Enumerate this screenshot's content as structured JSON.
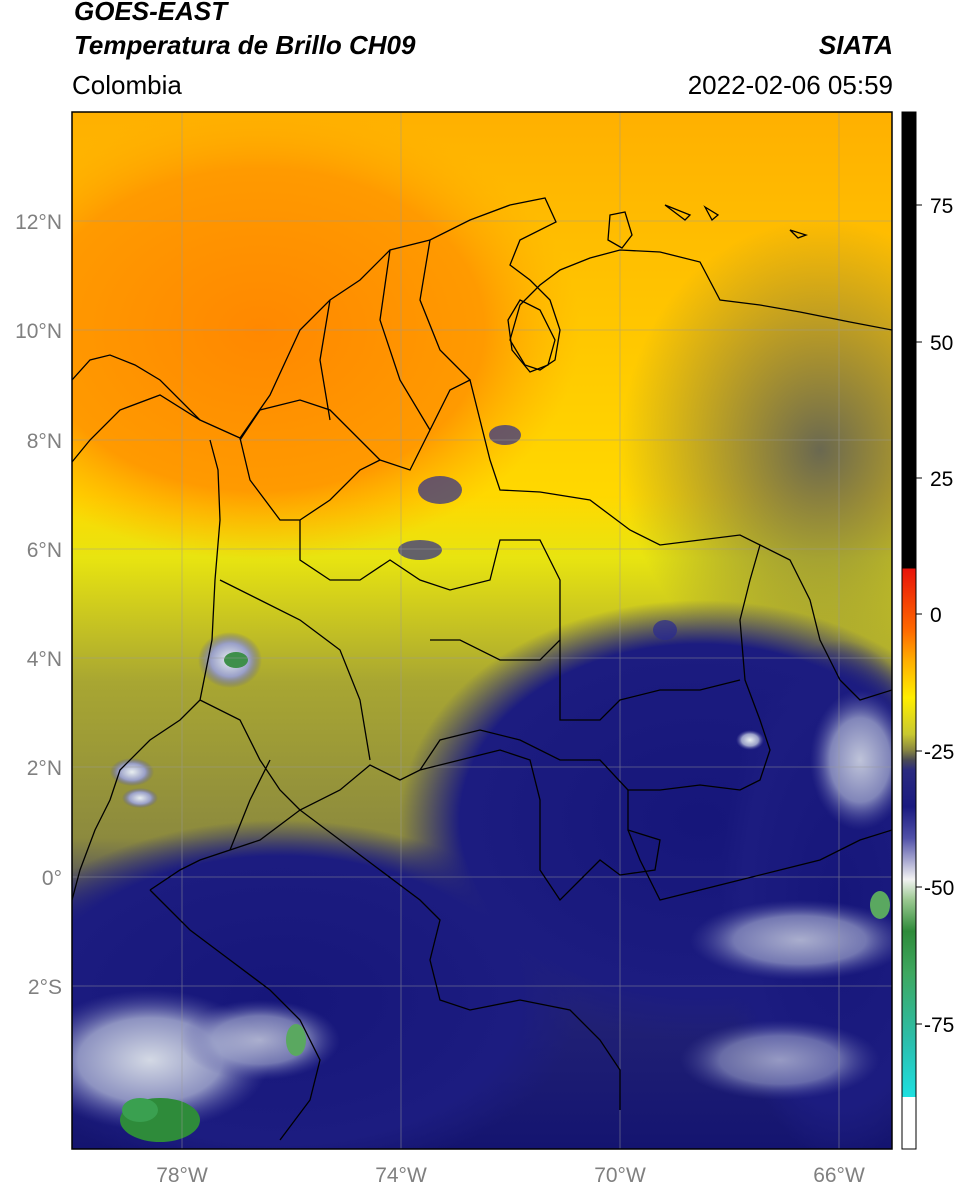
{
  "header": {
    "satellite": "GOES-EAST",
    "product": "Temperatura de Brillo CH09",
    "region": "Colombia",
    "source": "SIATA",
    "datetime": "2022-02-06 05:59"
  },
  "map": {
    "lat_labels": [
      "12°N",
      "10°N",
      "8°N",
      "6°N",
      "4°N",
      "2°N",
      "0°",
      "2°S"
    ],
    "lon_labels": [
      "78°W",
      "74°W",
      "70°W",
      "66°W"
    ],
    "lon_range": [
      -80,
      -65
    ],
    "lat_range": [
      -5,
      14
    ]
  },
  "colorbar": {
    "labels": [
      "75",
      "50",
      "25",
      "0",
      "-25",
      "-50",
      "-75"
    ],
    "colors": {
      "black": "#000000",
      "red": "#e8120a",
      "orange": "#ff8c00",
      "yellow": "#ffee00",
      "olive": "#b8b830",
      "gray": "#4a4a55",
      "navy": "#1a1a80",
      "white": "#f0f0f0",
      "green": "#2e8b3a",
      "cyan": "#1ee0e0"
    }
  }
}
